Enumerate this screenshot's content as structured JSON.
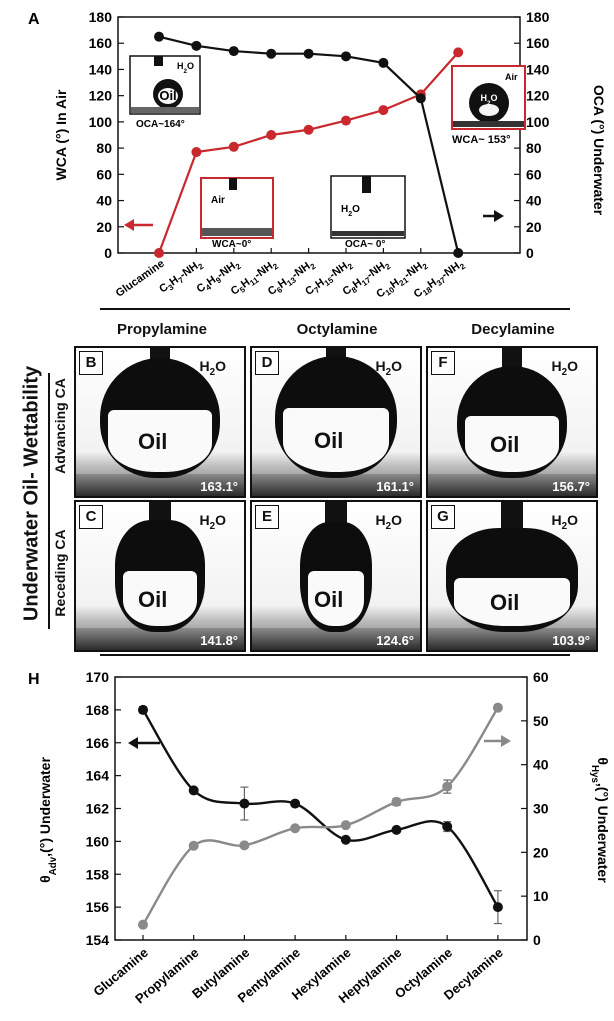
{
  "panel_a": {
    "letter": "A",
    "ylabel_left": "WCA (°) In Air",
    "ylabel_right": "OCA (°) Underwater",
    "inset_oca164": {
      "water": "H2O",
      "oil": "Oil",
      "caption": "OCA~164°"
    },
    "inset_wca0": {
      "air": "Air",
      "caption": "WCA~0°"
    },
    "inset_oca0": {
      "water": "H2O",
      "caption": "OCA~ 0°"
    },
    "inset_wca153": {
      "air": "Air",
      "water": "H2O",
      "caption": "WCA~ 153°"
    }
  },
  "panel_grid": {
    "side_title": "Underwater Oil- Wettability",
    "row_advancing": "Advancing CA",
    "row_receding": "Receding CA",
    "col_propylamine": "Propylamine",
    "col_octylamine": "Octylamine",
    "col_decylamine": "Decylamine",
    "oil": "Oil",
    "water": "H2O",
    "photos": [
      {
        "letter": "B",
        "angle": "163.1°"
      },
      {
        "letter": "D",
        "angle": "161.1°"
      },
      {
        "letter": "F",
        "angle": "156.7°"
      },
      {
        "letter": "C",
        "angle": "141.8°"
      },
      {
        "letter": "E",
        "angle": "124.6°"
      },
      {
        "letter": "G",
        "angle": "103.9°"
      }
    ]
  },
  "panel_h": {
    "letter": "H",
    "ylabel_left": "θAdv,(°) Underwater",
    "ylabel_right": "θHys,(°) Underwater"
  },
  "colors": {
    "red": "#c8282e",
    "black": "#111111",
    "gray": "#8a8a8a"
  },
  "chart_data": [
    {
      "type": "line",
      "categories": [
        "Glucamine",
        "C3H7-NH2",
        "C4H9-NH2",
        "C5H11-NH2",
        "C6H13-NH2",
        "C7H15-NH2",
        "C8H17-NH2",
        "C10H21-NH2",
        "C18H37-NH2"
      ],
      "category_labels": [
        {
          "pre": "Glucamine",
          "parts": []
        },
        {
          "pre": "C",
          "parts": [
            [
              "3",
              "sub"
            ],
            [
              "H",
              ""
            ],
            [
              "7",
              "sub"
            ],
            [
              "-NH",
              ""
            ],
            [
              "2",
              "sub"
            ]
          ]
        },
        {
          "pre": "C",
          "parts": [
            [
              "4",
              "sub"
            ],
            [
              "H",
              ""
            ],
            [
              "9",
              "sub"
            ],
            [
              "-NH",
              ""
            ],
            [
              "2",
              "sub"
            ]
          ]
        },
        {
          "pre": "C",
          "parts": [
            [
              "5",
              "sub"
            ],
            [
              "H",
              ""
            ],
            [
              "11",
              "sub"
            ],
            [
              "-NH",
              ""
            ],
            [
              "2",
              "sub"
            ]
          ]
        },
        {
          "pre": "C",
          "parts": [
            [
              "6",
              "sub"
            ],
            [
              "H",
              ""
            ],
            [
              "13",
              "sub"
            ],
            [
              "-NH",
              ""
            ],
            [
              "2",
              "sub"
            ]
          ]
        },
        {
          "pre": "C",
          "parts": [
            [
              "7",
              "sub"
            ],
            [
              "H",
              ""
            ],
            [
              "15",
              "sub"
            ],
            [
              "-NH",
              ""
            ],
            [
              "2",
              "sub"
            ]
          ]
        },
        {
          "pre": "C",
          "parts": [
            [
              "8",
              "sub"
            ],
            [
              "H",
              ""
            ],
            [
              "17",
              "sub"
            ],
            [
              "-NH",
              ""
            ],
            [
              "2",
              "sub"
            ]
          ]
        },
        {
          "pre": "C",
          "parts": [
            [
              "10",
              "sub"
            ],
            [
              "H",
              ""
            ],
            [
              "21",
              "sub"
            ],
            [
              "-NH",
              ""
            ],
            [
              "2",
              "sub"
            ]
          ]
        },
        {
          "pre": "C",
          "parts": [
            [
              "18",
              "sub"
            ],
            [
              "H",
              ""
            ],
            [
              "37",
              "sub"
            ],
            [
              "-NH",
              ""
            ],
            [
              "2",
              "sub"
            ]
          ]
        }
      ],
      "ylim": [
        0,
        180
      ],
      "yticks": [
        0,
        20,
        40,
        60,
        80,
        100,
        120,
        140,
        160,
        180
      ],
      "series": [
        {
          "axis": "left",
          "color": "#c8282e",
          "values": [
            0,
            77,
            81,
            90,
            94,
            101,
            109,
            121,
            153
          ]
        },
        {
          "axis": "right",
          "color": "#111111",
          "values": [
            165,
            158,
            154,
            152,
            152,
            150,
            145,
            118,
            0
          ]
        }
      ]
    },
    {
      "type": "line",
      "categories": [
        "Glucamine",
        "Propylamine",
        "Butylamine",
        "Pentylamine",
        "Hexylamine",
        "Heptylamine",
        "Octylamine",
        "Decylamine"
      ],
      "ylim_left": [
        154,
        170
      ],
      "yticks_left": [
        154,
        156,
        158,
        160,
        162,
        164,
        166,
        168,
        170
      ],
      "ylim_right": [
        0,
        60
      ],
      "yticks_right": [
        0,
        10,
        20,
        30,
        40,
        50,
        60
      ],
      "series": [
        {
          "axis": "left",
          "color": "#111111",
          "values": [
            168,
            163.1,
            162.3,
            162.3,
            160.1,
            160.7,
            160.9,
            156
          ],
          "errors": [
            0.2,
            0,
            1,
            0,
            0,
            0,
            0.3,
            1
          ]
        },
        {
          "axis": "right",
          "color": "#8a8a8a",
          "values": [
            3.5,
            21.5,
            21.6,
            25.5,
            26.2,
            31.5,
            35,
            53
          ],
          "errors": [
            0,
            0,
            0,
            0,
            0,
            0.8,
            1.5,
            0
          ]
        }
      ]
    }
  ]
}
